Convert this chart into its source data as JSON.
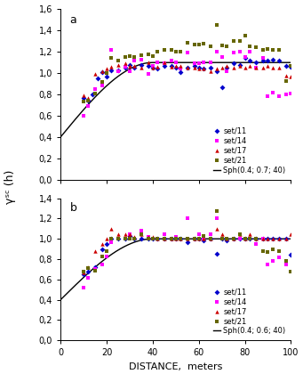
{
  "panel_a": {
    "label": "a",
    "nugget": 0.4,
    "partial_sill": 0.7,
    "range": 40,
    "model_label": "Sph(0.4; 0.7; 40)",
    "ylim": [
      0.0,
      1.6
    ],
    "yticks": [
      0.0,
      0.2,
      0.4,
      0.6,
      0.8,
      1.0,
      1.2,
      1.4,
      1.6
    ],
    "set11": [
      [
        10,
        0.77
      ],
      [
        12,
        0.74
      ],
      [
        14,
        0.8
      ],
      [
        16,
        0.95
      ],
      [
        18,
        1.01
      ],
      [
        20,
        0.97
      ],
      [
        22,
        1.03
      ],
      [
        25,
        1.03
      ],
      [
        28,
        1.05
      ],
      [
        30,
        1.08
      ],
      [
        32,
        1.05
      ],
      [
        35,
        1.08
      ],
      [
        38,
        1.07
      ],
      [
        40,
        1.05
      ],
      [
        42,
        1.04
      ],
      [
        45,
        1.07
      ],
      [
        48,
        1.07
      ],
      [
        50,
        1.05
      ],
      [
        52,
        1.01
      ],
      [
        55,
        1.05
      ],
      [
        58,
        1.07
      ],
      [
        60,
        1.05
      ],
      [
        62,
        1.04
      ],
      [
        65,
        1.05
      ],
      [
        68,
        1.02
      ],
      [
        70,
        0.87
      ],
      [
        72,
        1.05
      ],
      [
        75,
        1.09
      ],
      [
        78,
        1.08
      ],
      [
        80,
        1.14
      ],
      [
        82,
        1.12
      ],
      [
        85,
        1.1
      ],
      [
        88,
        1.12
      ],
      [
        90,
        1.12
      ],
      [
        92,
        1.13
      ],
      [
        95,
        1.12
      ],
      [
        98,
        1.07
      ],
      [
        100,
        1.06
      ]
    ],
    "set14": [
      [
        10,
        0.6
      ],
      [
        12,
        0.69
      ],
      [
        15,
        0.85
      ],
      [
        18,
        0.88
      ],
      [
        20,
        1.0
      ],
      [
        22,
        1.22
      ],
      [
        25,
        1.02
      ],
      [
        28,
        1.06
      ],
      [
        30,
        1.02
      ],
      [
        32,
        1.12
      ],
      [
        35,
        1.13
      ],
      [
        38,
        0.99
      ],
      [
        40,
        1.07
      ],
      [
        42,
        1.1
      ],
      [
        45,
        1.09
      ],
      [
        48,
        1.12
      ],
      [
        50,
        1.1
      ],
      [
        52,
        1.04
      ],
      [
        55,
        1.19
      ],
      [
        58,
        1.09
      ],
      [
        60,
        1.09
      ],
      [
        62,
        1.1
      ],
      [
        65,
        1.1
      ],
      [
        68,
        1.2
      ],
      [
        70,
        1.15
      ],
      [
        72,
        1.02
      ],
      [
        75,
        1.19
      ],
      [
        78,
        1.2
      ],
      [
        80,
        1.15
      ],
      [
        82,
        1.2
      ],
      [
        85,
        1.05
      ],
      [
        88,
        1.14
      ],
      [
        90,
        0.78
      ],
      [
        92,
        0.82
      ],
      [
        95,
        0.78
      ],
      [
        98,
        0.8
      ],
      [
        100,
        0.81
      ]
    ],
    "set17": [
      [
        10,
        0.79
      ],
      [
        12,
        0.77
      ],
      [
        15,
        0.99
      ],
      [
        18,
        1.02
      ],
      [
        20,
        1.04
      ],
      [
        22,
        1.06
      ],
      [
        25,
        1.08
      ],
      [
        28,
        1.09
      ],
      [
        30,
        1.07
      ],
      [
        32,
        1.07
      ],
      [
        35,
        1.05
      ],
      [
        38,
        1.1
      ],
      [
        40,
        1.05
      ],
      [
        42,
        1.06
      ],
      [
        45,
        1.1
      ],
      [
        48,
        1.06
      ],
      [
        50,
        1.07
      ],
      [
        52,
        1.07
      ],
      [
        55,
        1.05
      ],
      [
        58,
        1.05
      ],
      [
        60,
        1.04
      ],
      [
        62,
        1.04
      ],
      [
        65,
        1.02
      ],
      [
        68,
        1.04
      ],
      [
        70,
        1.05
      ],
      [
        72,
        1.07
      ],
      [
        75,
        1.05
      ],
      [
        78,
        1.07
      ],
      [
        80,
        1.05
      ],
      [
        82,
        1.07
      ],
      [
        85,
        1.05
      ],
      [
        88,
        1.05
      ],
      [
        90,
        1.07
      ],
      [
        92,
        1.05
      ],
      [
        95,
        1.05
      ],
      [
        98,
        0.98
      ],
      [
        100,
        0.97
      ]
    ],
    "set21": [
      [
        10,
        0.73
      ],
      [
        12,
        0.74
      ],
      [
        15,
        0.81
      ],
      [
        18,
        0.92
      ],
      [
        20,
        1.0
      ],
      [
        22,
        1.14
      ],
      [
        25,
        1.12
      ],
      [
        28,
        1.15
      ],
      [
        30,
        1.16
      ],
      [
        32,
        1.15
      ],
      [
        35,
        1.17
      ],
      [
        38,
        1.18
      ],
      [
        40,
        1.16
      ],
      [
        42,
        1.2
      ],
      [
        45,
        1.22
      ],
      [
        48,
        1.22
      ],
      [
        50,
        1.2
      ],
      [
        52,
        1.2
      ],
      [
        55,
        1.29
      ],
      [
        58,
        1.27
      ],
      [
        60,
        1.27
      ],
      [
        62,
        1.28
      ],
      [
        65,
        1.25
      ],
      [
        68,
        1.45
      ],
      [
        70,
        1.26
      ],
      [
        72,
        1.25
      ],
      [
        75,
        1.3
      ],
      [
        78,
        1.3
      ],
      [
        80,
        1.35
      ],
      [
        82,
        1.25
      ],
      [
        85,
        1.24
      ],
      [
        88,
        1.22
      ],
      [
        90,
        1.23
      ],
      [
        92,
        1.22
      ],
      [
        95,
        1.22
      ],
      [
        98,
        0.93
      ],
      [
        100,
        1.07
      ]
    ]
  },
  "panel_b": {
    "label": "b",
    "nugget": 0.4,
    "partial_sill": 0.6,
    "range": 40,
    "model_label": "Sph(0.4; 0.6; 40)",
    "ylim": [
      0.0,
      1.4
    ],
    "yticks": [
      0.0,
      0.2,
      0.4,
      0.6,
      0.8,
      1.0,
      1.2,
      1.4
    ],
    "set11": [
      [
        10,
        0.65
      ],
      [
        12,
        0.68
      ],
      [
        15,
        0.72
      ],
      [
        18,
        0.9
      ],
      [
        20,
        0.95
      ],
      [
        22,
        1.0
      ],
      [
        25,
        1.0
      ],
      [
        28,
        1.0
      ],
      [
        30,
        1.03
      ],
      [
        32,
        1.0
      ],
      [
        35,
        1.0
      ],
      [
        38,
        1.0
      ],
      [
        40,
        1.0
      ],
      [
        42,
        1.0
      ],
      [
        45,
        1.0
      ],
      [
        48,
        1.0
      ],
      [
        50,
        1.0
      ],
      [
        52,
        1.0
      ],
      [
        55,
        0.97
      ],
      [
        58,
        1.0
      ],
      [
        60,
        1.0
      ],
      [
        62,
        0.98
      ],
      [
        65,
        1.0
      ],
      [
        68,
        0.85
      ],
      [
        70,
        1.0
      ],
      [
        72,
        0.98
      ],
      [
        75,
        1.0
      ],
      [
        78,
        1.0
      ],
      [
        80,
        1.0
      ],
      [
        82,
        1.0
      ],
      [
        85,
        1.0
      ],
      [
        88,
        1.0
      ],
      [
        90,
        1.0
      ],
      [
        92,
        1.0
      ],
      [
        95,
        1.0
      ],
      [
        98,
        1.0
      ],
      [
        100,
        0.84
      ]
    ],
    "set14": [
      [
        10,
        0.52
      ],
      [
        12,
        0.62
      ],
      [
        15,
        0.7
      ],
      [
        18,
        0.75
      ],
      [
        20,
        0.83
      ],
      [
        22,
        0.97
      ],
      [
        25,
        1.0
      ],
      [
        28,
        1.0
      ],
      [
        30,
        1.05
      ],
      [
        32,
        1.0
      ],
      [
        35,
        1.08
      ],
      [
        38,
        1.02
      ],
      [
        40,
        1.0
      ],
      [
        42,
        1.0
      ],
      [
        45,
        1.05
      ],
      [
        48,
        1.0
      ],
      [
        50,
        1.02
      ],
      [
        52,
        1.0
      ],
      [
        55,
        1.2
      ],
      [
        58,
        1.0
      ],
      [
        60,
        1.05
      ],
      [
        62,
        1.0
      ],
      [
        65,
        1.05
      ],
      [
        68,
        1.2
      ],
      [
        70,
        1.0
      ],
      [
        72,
        1.0
      ],
      [
        75,
        1.0
      ],
      [
        78,
        1.0
      ],
      [
        80,
        1.0
      ],
      [
        82,
        1.0
      ],
      [
        85,
        0.95
      ],
      [
        88,
        1.0
      ],
      [
        90,
        0.75
      ],
      [
        92,
        0.78
      ],
      [
        95,
        0.82
      ],
      [
        98,
        0.75
      ],
      [
        100,
        0.68
      ]
    ],
    "set17": [
      [
        10,
        0.67
      ],
      [
        12,
        0.72
      ],
      [
        15,
        0.88
      ],
      [
        18,
        0.95
      ],
      [
        20,
        1.0
      ],
      [
        22,
        1.1
      ],
      [
        25,
        1.05
      ],
      [
        28,
        1.05
      ],
      [
        30,
        1.05
      ],
      [
        32,
        1.02
      ],
      [
        35,
        1.05
      ],
      [
        38,
        1.02
      ],
      [
        40,
        1.02
      ],
      [
        42,
        1.0
      ],
      [
        45,
        1.0
      ],
      [
        48,
        1.0
      ],
      [
        50,
        1.0
      ],
      [
        52,
        1.0
      ],
      [
        55,
        1.0
      ],
      [
        58,
        1.0
      ],
      [
        60,
        1.0
      ],
      [
        62,
        1.0
      ],
      [
        65,
        1.0
      ],
      [
        68,
        1.1
      ],
      [
        70,
        1.05
      ],
      [
        72,
        1.0
      ],
      [
        75,
        1.0
      ],
      [
        78,
        1.05
      ],
      [
        80,
        1.0
      ],
      [
        82,
        1.05
      ],
      [
        85,
        1.0
      ],
      [
        88,
        1.0
      ],
      [
        90,
        1.0
      ],
      [
        92,
        1.0
      ],
      [
        95,
        1.0
      ],
      [
        98,
        1.0
      ],
      [
        100,
        1.05
      ]
    ],
    "set21": [
      [
        10,
        0.68
      ],
      [
        12,
        0.71
      ],
      [
        15,
        0.69
      ],
      [
        18,
        0.83
      ],
      [
        20,
        0.88
      ],
      [
        22,
        1.0
      ],
      [
        25,
        1.0
      ],
      [
        28,
        1.0
      ],
      [
        30,
        1.0
      ],
      [
        32,
        1.0
      ],
      [
        35,
        1.05
      ],
      [
        38,
        1.0
      ],
      [
        40,
        1.0
      ],
      [
        42,
        1.0
      ],
      [
        45,
        1.0
      ],
      [
        48,
        1.0
      ],
      [
        50,
        1.0
      ],
      [
        52,
        1.0
      ],
      [
        55,
        1.0
      ],
      [
        58,
        1.0
      ],
      [
        60,
        1.0
      ],
      [
        62,
        1.03
      ],
      [
        65,
        1.0
      ],
      [
        68,
        1.27
      ],
      [
        70,
        1.0
      ],
      [
        72,
        1.0
      ],
      [
        75,
        1.0
      ],
      [
        78,
        1.05
      ],
      [
        80,
        1.0
      ],
      [
        82,
        1.0
      ],
      [
        85,
        1.0
      ],
      [
        88,
        0.88
      ],
      [
        90,
        0.87
      ],
      [
        92,
        0.9
      ],
      [
        95,
        0.88
      ],
      [
        98,
        0.78
      ],
      [
        100,
        0.68
      ]
    ]
  },
  "colors": {
    "set11": "#0000cc",
    "set14": "#ff00ff",
    "set17": "#cc0000",
    "set21": "#666600"
  },
  "xlim": [
    0,
    100
  ],
  "xticks": [
    0,
    20,
    40,
    60,
    80,
    100
  ],
  "xlabel": "DISTANCE,  meters",
  "ylabel": "γˢᶜ (h)"
}
